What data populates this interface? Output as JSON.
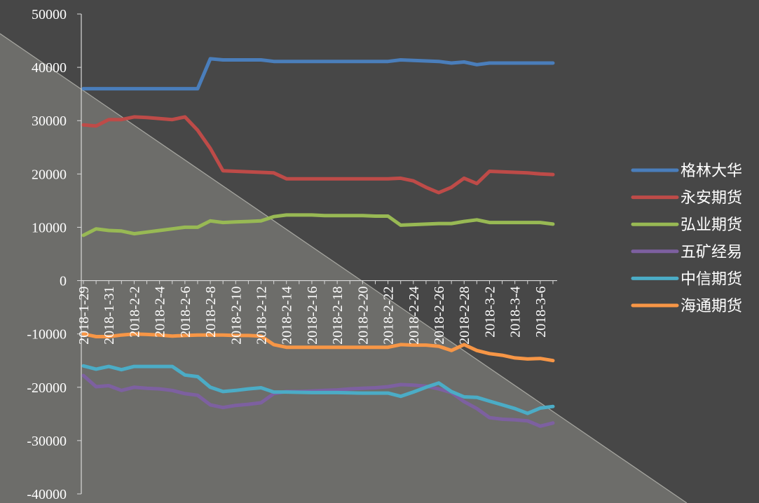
{
  "chart_data": {
    "type": "line",
    "ylim": [
      -40000,
      50000
    ],
    "y_ticks": [
      "50000",
      "40000",
      "30000",
      "20000",
      "10000",
      "0",
      "-10000",
      "-20000",
      "-30000",
      "-40000"
    ],
    "y_tick_values": [
      50000,
      40000,
      30000,
      20000,
      10000,
      0,
      -10000,
      -20000,
      -30000,
      -40000
    ],
    "grid": false,
    "legend_position": "right",
    "x": [
      "2018-1-29",
      "2018-1-30",
      "2018-1-31",
      "2018-2-1",
      "2018-2-2",
      "2018-2-3",
      "2018-2-4",
      "2018-2-5",
      "2018-2-6",
      "2018-2-7",
      "2018-2-8",
      "2018-2-9",
      "2018-2-10",
      "2018-2-11",
      "2018-2-12",
      "2018-2-13",
      "2018-2-14",
      "2018-2-15",
      "2018-2-16",
      "2018-2-17",
      "2018-2-18",
      "2018-2-19",
      "2018-2-20",
      "2018-2-21",
      "2018-2-22",
      "2018-2-23",
      "2018-2-24",
      "2018-2-25",
      "2018-2-26",
      "2018-2-27",
      "2018-2-28",
      "2018-3-1",
      "2018-3-2",
      "2018-3-3",
      "2018-3-4",
      "2018-3-5",
      "2018-3-6",
      "2018-3-7"
    ],
    "x_tick_labels": [
      "2018-1-29",
      "2018-1-31",
      "2018-2-2",
      "2018-2-4",
      "2018-2-6",
      "2018-2-8",
      "2018-2-10",
      "2018-2-12",
      "2018-2-14",
      "2018-2-16",
      "2018-2-18",
      "2018-2-20",
      "2018-2-22",
      "2018-2-24",
      "2018-2-26",
      "2018-2-28",
      "2018-3-2",
      "2018-3-4",
      "2018-3-6"
    ],
    "series": [
      {
        "name": "格林大华",
        "color": "#4a7ebb",
        "values": [
          36000,
          36000,
          36000,
          36000,
          36000,
          36000,
          36000,
          36000,
          36000,
          36000,
          41600,
          41400,
          41400,
          41400,
          41400,
          41100,
          41100,
          41100,
          41100,
          41100,
          41100,
          41100,
          41100,
          41100,
          41100,
          41400,
          41300,
          41200,
          41100,
          40800,
          41000,
          40500,
          40800,
          40800,
          40800,
          40800,
          40800,
          40800
        ]
      },
      {
        "name": "永安期货",
        "color": "#be4b48",
        "values": [
          29200,
          29000,
          30200,
          30200,
          30700,
          30600,
          30400,
          30200,
          30700,
          28200,
          24800,
          20600,
          20500,
          20400,
          20300,
          20200,
          19100,
          19100,
          19100,
          19100,
          19100,
          19100,
          19100,
          19100,
          19100,
          19200,
          18700,
          17500,
          16500,
          17500,
          19200,
          18200,
          20500,
          20400,
          20300,
          20200,
          20000,
          19900
        ]
      },
      {
        "name": "弘业期货",
        "color": "#98b954",
        "values": [
          8500,
          9700,
          9400,
          9300,
          8800,
          9100,
          9400,
          9700,
          10000,
          10000,
          11200,
          10900,
          11000,
          11100,
          11200,
          12000,
          12300,
          12300,
          12300,
          12200,
          12200,
          12200,
          12200,
          12100,
          12100,
          10400,
          10500,
          10600,
          10700,
          10700,
          11100,
          11400,
          10900,
          10900,
          10900,
          10900,
          10900,
          10600
        ]
      },
      {
        "name": "五矿经易",
        "color": "#7d60a0",
        "values": [
          -17800,
          -19900,
          -19700,
          -20600,
          -20000,
          -20200,
          -20300,
          -20600,
          -21200,
          -21500,
          -23300,
          -23800,
          -23400,
          -23200,
          -22900,
          -21200,
          -20800,
          -20800,
          -20700,
          -20600,
          -20500,
          -20300,
          -20200,
          -20100,
          -19900,
          -19500,
          -19600,
          -19800,
          -20300,
          -21000,
          -22700,
          -24000,
          -25700,
          -26000,
          -26100,
          -26300,
          -27300,
          -26700
        ]
      },
      {
        "name": "中信期货",
        "color": "#4bacc6",
        "values": [
          -16000,
          -16600,
          -16100,
          -16700,
          -16100,
          -16100,
          -16100,
          -16100,
          -17700,
          -18000,
          -20000,
          -20800,
          -20600,
          -20300,
          -20100,
          -20900,
          -20900,
          -20950,
          -21000,
          -21000,
          -21000,
          -21050,
          -21100,
          -21100,
          -21100,
          -21700,
          -20900,
          -20000,
          -19200,
          -20800,
          -21800,
          -21900,
          -22600,
          -23300,
          -24000,
          -24900,
          -23900,
          -23600
        ]
      },
      {
        "name": "海通期货",
        "color": "#f79646",
        "values": [
          -10000,
          -10500,
          -10500,
          -10200,
          -10000,
          -10100,
          -10200,
          -10400,
          -10300,
          -10200,
          -10200,
          -10200,
          -10300,
          -10300,
          -10400,
          -12000,
          -12500,
          -12500,
          -12500,
          -12500,
          -12500,
          -12500,
          -12500,
          -12500,
          -12500,
          -12000,
          -12100,
          -12100,
          -12300,
          -13100,
          -12000,
          -13100,
          -13700,
          -14000,
          -14500,
          -14700,
          -14600,
          -15000
        ]
      }
    ]
  }
}
